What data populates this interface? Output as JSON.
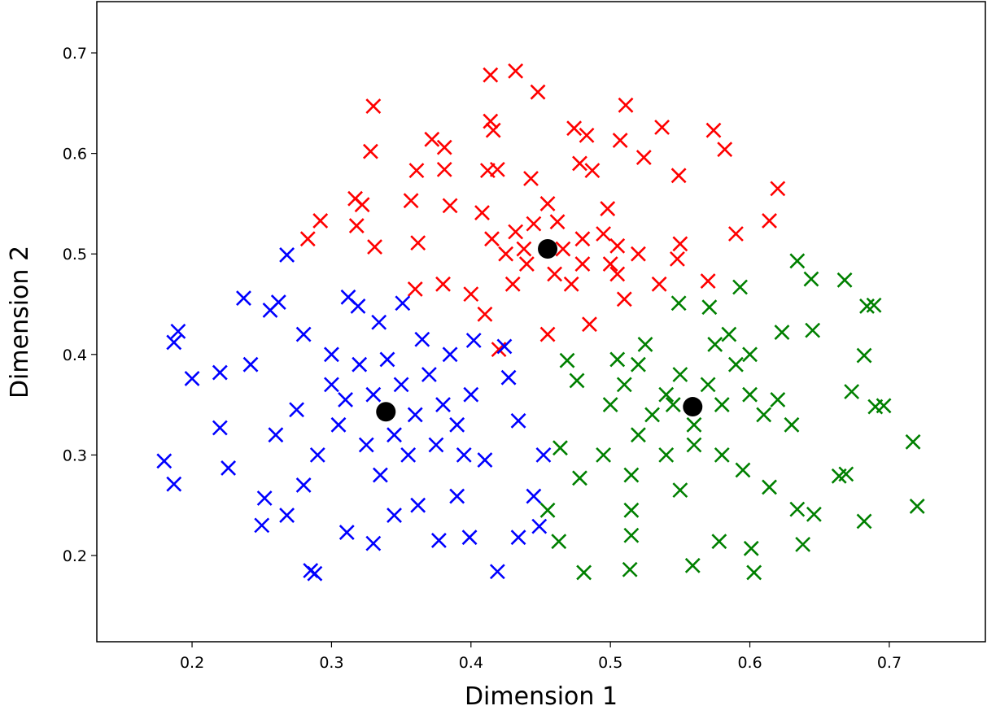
{
  "chart_data": {
    "type": "scatter",
    "x_label": "Dimension 1",
    "y_label": "Dimension 2",
    "xlim": [
      0.1317,
      0.7689
    ],
    "ylim": [
      0.1142,
      0.751
    ],
    "xticks": [
      0.2,
      0.3,
      0.4,
      0.5,
      0.6,
      0.7
    ],
    "yticks": [
      0.2,
      0.3,
      0.4,
      0.5,
      0.6,
      0.7
    ],
    "grid": false,
    "series": [
      {
        "color": "#ff0000",
        "marker": "x",
        "x": [
          0.414,
          0.432,
          0.33,
          0.448,
          0.414,
          0.416,
          0.511,
          0.537,
          0.474,
          0.483,
          0.372,
          0.381,
          0.328,
          0.507,
          0.574,
          0.582,
          0.361,
          0.381,
          0.412,
          0.419,
          0.478,
          0.487,
          0.524,
          0.549,
          0.443,
          0.62,
          0.317,
          0.322,
          0.357,
          0.385,
          0.292,
          0.283,
          0.318,
          0.331,
          0.614,
          0.59,
          0.362,
          0.408,
          0.432,
          0.445,
          0.466,
          0.48,
          0.495,
          0.505,
          0.425,
          0.44,
          0.46,
          0.48,
          0.5,
          0.52,
          0.55,
          0.535,
          0.472,
          0.43,
          0.4,
          0.38,
          0.36,
          0.51,
          0.485,
          0.455,
          0.42,
          0.57,
          0.548,
          0.41,
          0.462,
          0.455,
          0.498,
          0.415,
          0.438,
          0.505
        ],
        "y": [
          0.678,
          0.682,
          0.647,
          0.661,
          0.632,
          0.623,
          0.648,
          0.626,
          0.625,
          0.618,
          0.614,
          0.606,
          0.602,
          0.613,
          0.623,
          0.604,
          0.583,
          0.584,
          0.583,
          0.584,
          0.59,
          0.583,
          0.596,
          0.578,
          0.575,
          0.565,
          0.555,
          0.549,
          0.553,
          0.548,
          0.533,
          0.515,
          0.528,
          0.507,
          0.533,
          0.52,
          0.511,
          0.541,
          0.522,
          0.53,
          0.505,
          0.515,
          0.52,
          0.508,
          0.5,
          0.49,
          0.48,
          0.49,
          0.49,
          0.5,
          0.51,
          0.47,
          0.47,
          0.47,
          0.46,
          0.47,
          0.465,
          0.455,
          0.43,
          0.42,
          0.405,
          0.473,
          0.495,
          0.44,
          0.532,
          0.55,
          0.545,
          0.515,
          0.505,
          0.48
        ]
      },
      {
        "color": "#0000ff",
        "marker": "x",
        "x": [
          0.268,
          0.237,
          0.19,
          0.187,
          0.2,
          0.18,
          0.187,
          0.22,
          0.22,
          0.226,
          0.25,
          0.252,
          0.268,
          0.285,
          0.288,
          0.311,
          0.33,
          0.345,
          0.377,
          0.399,
          0.419,
          0.434,
          0.449,
          0.445,
          0.452,
          0.434,
          0.39,
          0.362,
          0.312,
          0.319,
          0.351,
          0.334,
          0.365,
          0.402,
          0.424,
          0.427,
          0.262,
          0.256,
          0.242,
          0.28,
          0.3,
          0.31,
          0.32,
          0.33,
          0.35,
          0.36,
          0.37,
          0.38,
          0.39,
          0.4,
          0.345,
          0.325,
          0.305,
          0.29,
          0.275,
          0.26,
          0.355,
          0.375,
          0.395,
          0.41,
          0.28,
          0.335,
          0.385,
          0.34,
          0.3
        ],
        "y": [
          0.499,
          0.456,
          0.423,
          0.412,
          0.376,
          0.294,
          0.271,
          0.382,
          0.327,
          0.287,
          0.23,
          0.257,
          0.24,
          0.185,
          0.182,
          0.223,
          0.212,
          0.24,
          0.215,
          0.218,
          0.184,
          0.218,
          0.229,
          0.259,
          0.3,
          0.334,
          0.259,
          0.25,
          0.457,
          0.448,
          0.451,
          0.432,
          0.415,
          0.414,
          0.408,
          0.377,
          0.452,
          0.444,
          0.39,
          0.42,
          0.37,
          0.355,
          0.39,
          0.36,
          0.37,
          0.34,
          0.38,
          0.35,
          0.33,
          0.36,
          0.32,
          0.31,
          0.33,
          0.3,
          0.345,
          0.32,
          0.3,
          0.31,
          0.3,
          0.295,
          0.27,
          0.28,
          0.4,
          0.395,
          0.4
        ]
      },
      {
        "color": "#008000",
        "marker": "x",
        "x": [
          0.634,
          0.644,
          0.668,
          0.684,
          0.689,
          0.593,
          0.571,
          0.549,
          0.623,
          0.645,
          0.682,
          0.673,
          0.69,
          0.696,
          0.717,
          0.72,
          0.682,
          0.669,
          0.664,
          0.646,
          0.638,
          0.634,
          0.614,
          0.601,
          0.603,
          0.578,
          0.559,
          0.514,
          0.481,
          0.463,
          0.455,
          0.478,
          0.464,
          0.469,
          0.476,
          0.5,
          0.51,
          0.52,
          0.53,
          0.54,
          0.55,
          0.56,
          0.57,
          0.58,
          0.59,
          0.6,
          0.61,
          0.52,
          0.54,
          0.56,
          0.58,
          0.595,
          0.515,
          0.515,
          0.515,
          0.525,
          0.575,
          0.585,
          0.6,
          0.62,
          0.63,
          0.495,
          0.55,
          0.505,
          0.545
        ],
        "y": [
          0.493,
          0.475,
          0.474,
          0.448,
          0.449,
          0.467,
          0.447,
          0.451,
          0.422,
          0.424,
          0.399,
          0.363,
          0.348,
          0.349,
          0.313,
          0.249,
          0.234,
          0.281,
          0.279,
          0.241,
          0.211,
          0.246,
          0.268,
          0.207,
          0.183,
          0.214,
          0.19,
          0.186,
          0.183,
          0.214,
          0.245,
          0.277,
          0.307,
          0.394,
          0.374,
          0.35,
          0.37,
          0.39,
          0.34,
          0.36,
          0.38,
          0.33,
          0.37,
          0.35,
          0.39,
          0.36,
          0.34,
          0.32,
          0.3,
          0.31,
          0.3,
          0.285,
          0.28,
          0.245,
          0.22,
          0.41,
          0.41,
          0.42,
          0.4,
          0.355,
          0.33,
          0.3,
          0.265,
          0.395,
          0.35
        ]
      },
      {
        "color": "#000000",
        "marker": "o",
        "x": [
          0.339,
          0.455,
          0.559
        ],
        "y": [
          0.343,
          0.505,
          0.348
        ]
      }
    ]
  }
}
